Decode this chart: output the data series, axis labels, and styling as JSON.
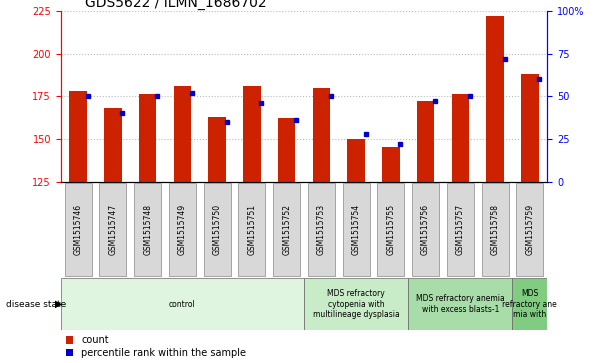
{
  "title": "GDS5622 / ILMN_1686702",
  "samples": [
    "GSM1515746",
    "GSM1515747",
    "GSM1515748",
    "GSM1515749",
    "GSM1515750",
    "GSM1515751",
    "GSM1515752",
    "GSM1515753",
    "GSM1515754",
    "GSM1515755",
    "GSM1515756",
    "GSM1515757",
    "GSM1515758",
    "GSM1515759"
  ],
  "count_values": [
    178,
    168,
    176,
    181,
    163,
    181,
    162,
    180,
    150,
    145,
    172,
    176,
    222,
    188
  ],
  "percentile_values": [
    50,
    40,
    50,
    52,
    35,
    46,
    36,
    50,
    28,
    22,
    47,
    50,
    72,
    60
  ],
  "ylim_left": [
    125,
    225
  ],
  "ylim_right": [
    0,
    100
  ],
  "yticks_left": [
    125,
    150,
    175,
    200,
    225
  ],
  "yticks_right": [
    0,
    25,
    50,
    75,
    100
  ],
  "bar_color": "#cc2200",
  "marker_color": "#0000cc",
  "background_color": "#ffffff",
  "grid_color": "#bbbbbb",
  "disease_groups": [
    {
      "label": "control",
      "start": 0,
      "end": 7,
      "color": "#e0f5e0"
    },
    {
      "label": "MDS refractory\ncytopenia with\nmultilineage dysplasia",
      "start": 7,
      "end": 10,
      "color": "#c8ecc8"
    },
    {
      "label": "MDS refractory anemia\nwith excess blasts-1",
      "start": 10,
      "end": 13,
      "color": "#a8dca8"
    },
    {
      "label": "MDS\nrefractory ane\nmia with",
      "start": 13,
      "end": 14,
      "color": "#80cc80"
    }
  ],
  "title_fontsize": 10,
  "tick_fontsize": 7,
  "legend_fontsize": 7,
  "bar_width": 0.5,
  "marker_size": 3.5
}
